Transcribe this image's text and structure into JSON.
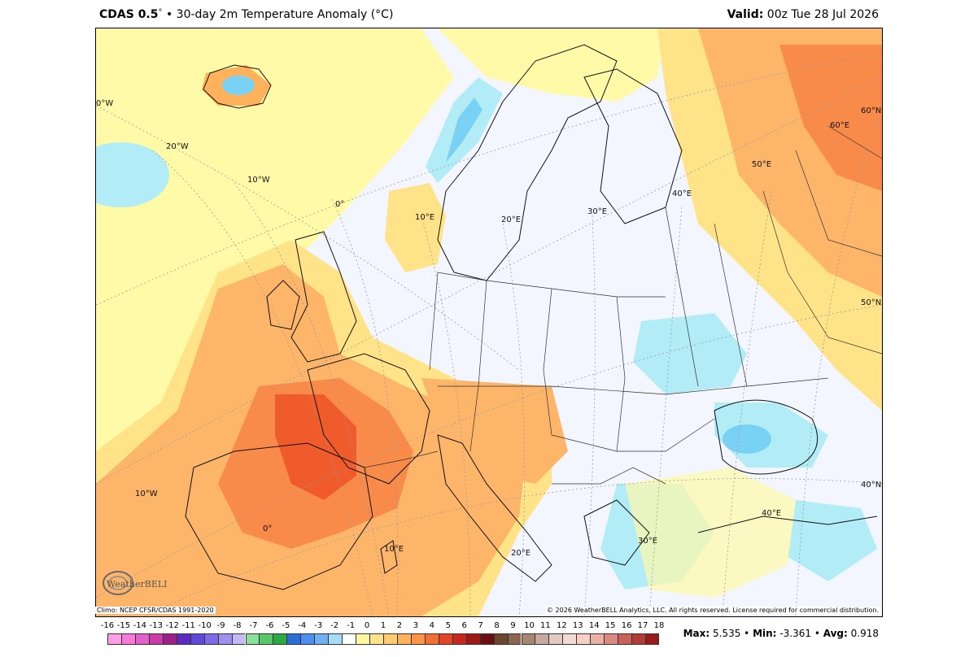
{
  "header": {
    "product": "CDAS 0.5",
    "degree": "°",
    "bullet": "•",
    "title": "30-day 2m Temperature Anomaly (°C)",
    "valid_label": "Valid:",
    "valid_time": "00z Tue 28 Jul 2026"
  },
  "map": {
    "region": "Europe",
    "graticule_labels": [
      "0°W",
      "20°W",
      "10°W",
      "0°",
      "10°E",
      "20°E",
      "30°E",
      "40°E",
      "50°E",
      "60°E",
      "60°N",
      "50°N",
      "40°N",
      "10°W",
      "0°",
      "10°E",
      "20°E",
      "30°E",
      "40°E"
    ],
    "colors": {
      "land_neutral": "#f3f6ff",
      "warm1": "#fffaa8",
      "warm2": "#ffe389",
      "warm3": "#fdb56a",
      "warm4": "#f88b4a",
      "warm5": "#ef5b2a",
      "cool1": "#b2ecf7",
      "cool2": "#79d2f3",
      "cool3": "#4aa8ea"
    }
  },
  "footer": {
    "climo": "Climo: NCEP CFSR/CDAS 1991-2020",
    "copyright": "© 2026 WeatherBELL Analytics, LLC. All rights reserved. License required for commercial distribution.",
    "logo_text": "WeatherBELL"
  },
  "legend": {
    "ticks": [
      "-16",
      "-15",
      "-14",
      "-13",
      "-12",
      "-11",
      "-10",
      "-9",
      "-8",
      "-7",
      "-6",
      "-5",
      "-4",
      "-3",
      "-2",
      "-1",
      "0",
      "1",
      "2",
      "3",
      "4",
      "5",
      "6",
      "7",
      "8",
      "9",
      "10",
      "11",
      "12",
      "13",
      "14",
      "15",
      "16",
      "17",
      "18"
    ],
    "colors": [
      "#ff9ee6",
      "#f77ad9",
      "#e45fc9",
      "#c93ba8",
      "#9c1e88",
      "#5a2bbf",
      "#6048d8",
      "#7d6ae6",
      "#a090ee",
      "#c5b8f5",
      "#88e09a",
      "#58c76a",
      "#2ea845",
      "#2a6fd9",
      "#4c8ff0",
      "#6fb0f5",
      "#a7dcf6",
      "#ffffff",
      "#fff7a4",
      "#ffe38a",
      "#ffcc71",
      "#ffb25b",
      "#fc9447",
      "#f36f33",
      "#e24525",
      "#c6281d",
      "#9e1a19",
      "#6d0e12",
      "#6b4630",
      "#8a6550",
      "#a98574",
      "#c7a89c",
      "#e2cac2",
      "#f3dad2",
      "#f7cfc4",
      "#eab1a8",
      "#db8a82",
      "#c9615a",
      "#b33b35",
      "#971b1a"
    ]
  },
  "stats": {
    "max_label": "Max:",
    "max": "5.535",
    "min_label": "Min:",
    "min": "-3.361",
    "avg_label": "Avg:",
    "avg": "0.918",
    "bullet": "•"
  }
}
